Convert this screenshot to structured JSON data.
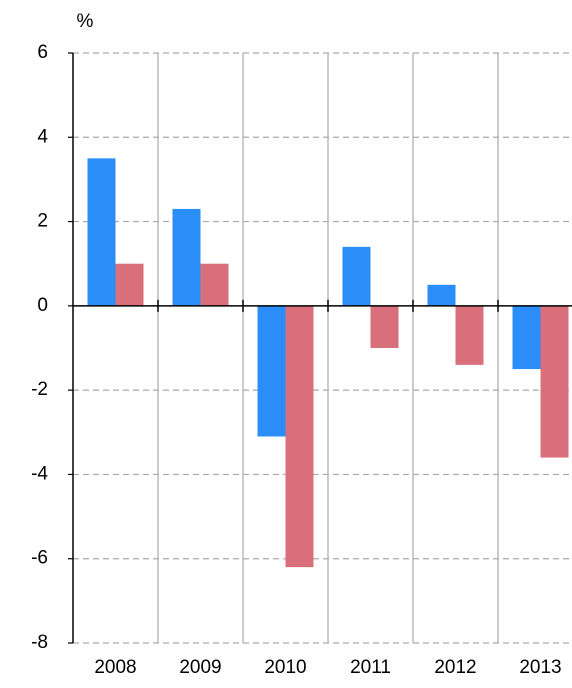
{
  "chart_data": {
    "type": "bar",
    "y_label": "%",
    "categories": [
      "2008",
      "2009",
      "2010",
      "2011",
      "2012",
      "2013"
    ],
    "series": [
      {
        "color": "#2b8ef8",
        "values": [
          3.5,
          2.3,
          -3.1,
          1.4,
          0.5,
          -1.5
        ]
      },
      {
        "color": "#d96f7b",
        "values": [
          1.0,
          1.0,
          -6.2,
          -1.0,
          -1.4,
          -3.6
        ]
      }
    ],
    "ylim": [
      -8,
      6
    ],
    "yticks": [
      -8,
      -6,
      -4,
      -2,
      0,
      2,
      4,
      6
    ],
    "grid": true
  }
}
